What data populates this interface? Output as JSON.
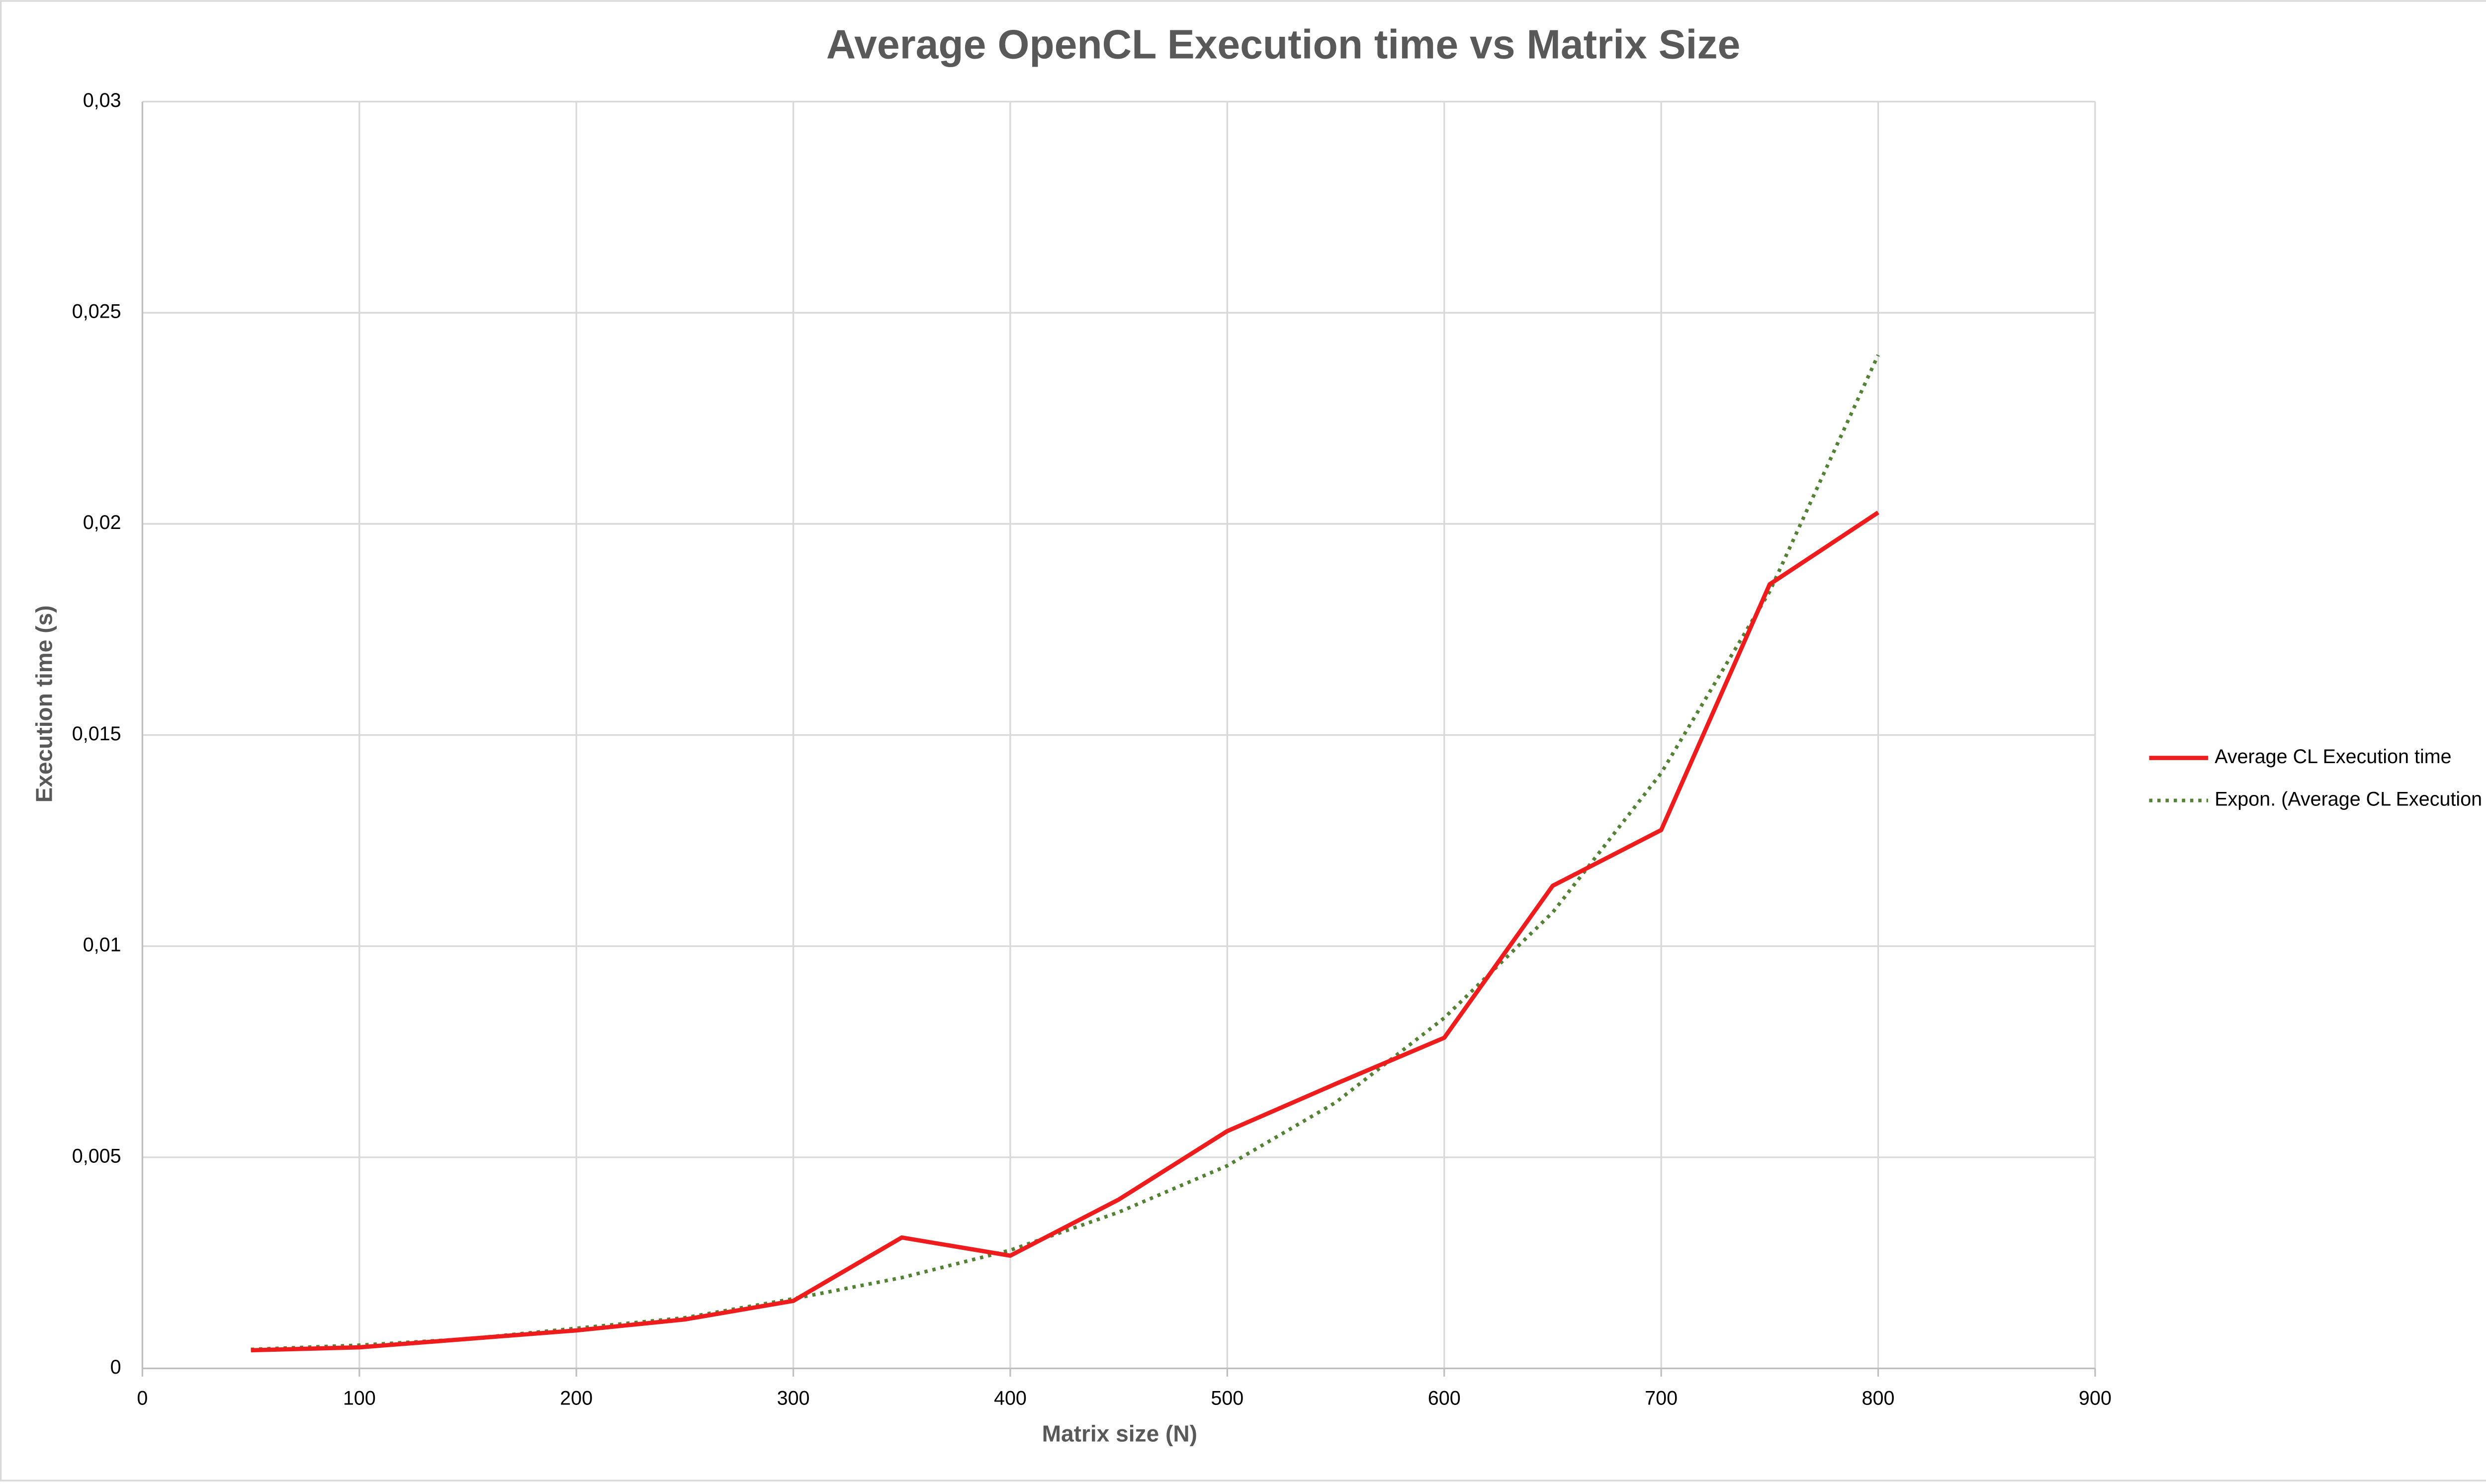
{
  "chart_data": {
    "type": "line",
    "title": "Average OpenCL Execution time vs Matrix Size",
    "x_label": "Matrix size (N)",
    "y_label": "Execution time (s)",
    "x": [
      50,
      100,
      150,
      200,
      250,
      300,
      350,
      400,
      450,
      500,
      550,
      600,
      650,
      700,
      750,
      800
    ],
    "series": [
      {
        "name": "Average CL Execution time",
        "color": "#ee1c1c",
        "style": "solid",
        "values": [
          0.00043,
          0.0005,
          0.0007,
          0.0009,
          0.00116,
          0.0016,
          0.0031,
          0.00267,
          0.004,
          0.00562,
          0.00674,
          0.00783,
          0.01143,
          0.01275,
          0.01857,
          0.02027
        ]
      },
      {
        "name": "Expon. (Average CL Execution time)",
        "color": "#548235",
        "style": "dotted",
        "values": [
          0.00045,
          0.00055,
          0.0007,
          0.00095,
          0.0012,
          0.00165,
          0.00215,
          0.0028,
          0.0037,
          0.0048,
          0.0063,
          0.0083,
          0.0108,
          0.0141,
          0.0184,
          0.024
        ]
      }
    ],
    "xlim": [
      0,
      900
    ],
    "xticks": [
      0,
      100,
      200,
      300,
      400,
      500,
      600,
      700,
      800,
      900
    ],
    "ylim": [
      0,
      0.03
    ],
    "yticks": [
      0,
      {
        "value": 0.005,
        "label": "0,005"
      },
      {
        "value": 0.01,
        "label": "0,01"
      },
      {
        "value": 0.015,
        "label": "0,015"
      },
      {
        "value": 0.02,
        "label": "0,02"
      },
      {
        "value": 0.025,
        "label": "0,025"
      },
      {
        "value": 0.03,
        "label": "0,03"
      }
    ],
    "grid": true,
    "legend": "right"
  }
}
